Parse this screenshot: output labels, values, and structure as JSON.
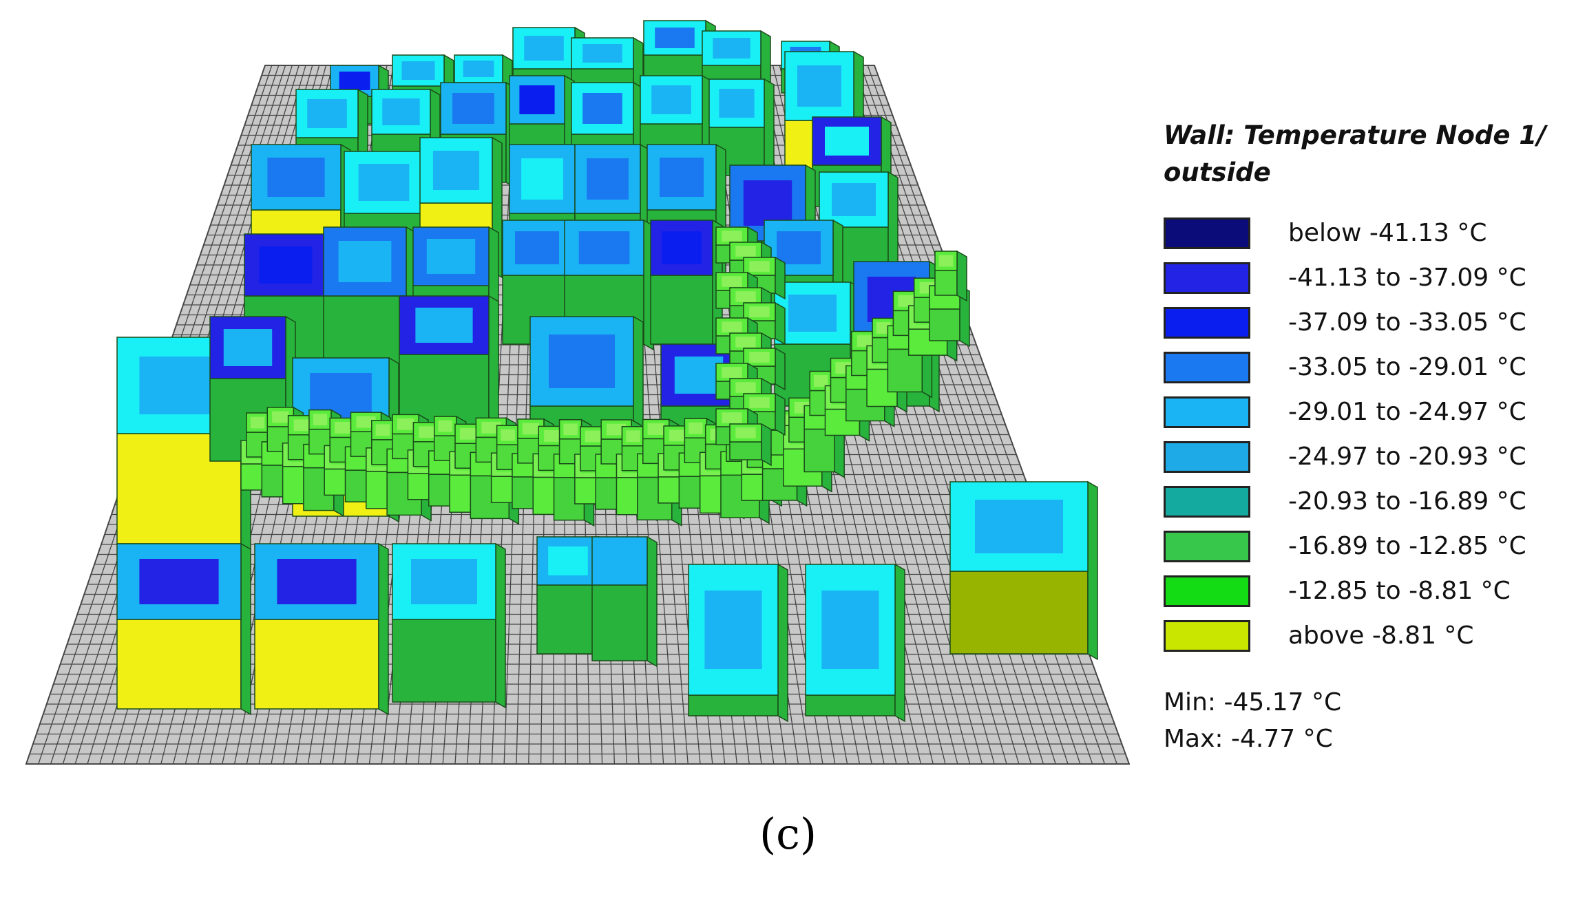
{
  "legend": {
    "title_line1": "Wall: Temperature Node 1/",
    "title_line2": "outside",
    "items": [
      {
        "label": "below -41.13 °C",
        "color": "#0b0b7a"
      },
      {
        "label": "-41.13 to -37.09 °C",
        "color": "#2323e6"
      },
      {
        "label": "-37.09 to -33.05 °C",
        "color": "#0a1ef0"
      },
      {
        "label": "-33.05 to -29.01 °C",
        "color": "#1a78f0"
      },
      {
        "label": "-29.01 to -24.97 °C",
        "color": "#1ab4f5"
      },
      {
        "label": "-24.97 to -20.93 °C",
        "color": "#1eaae6"
      },
      {
        "label": "-20.93 to -16.89 °C",
        "color": "#14aaa0"
      },
      {
        "label": "-16.89 to -12.85 °C",
        "color": "#37c84b"
      },
      {
        "label": "-12.85 to -8.81 °C",
        "color": "#14dc14"
      },
      {
        "label": "above -8.81 °C",
        "color": "#c8e600"
      }
    ]
  },
  "stats": {
    "min": "Min: -45.17 °C",
    "max": "Max: -4.77 °C"
  },
  "caption": "(c)"
}
